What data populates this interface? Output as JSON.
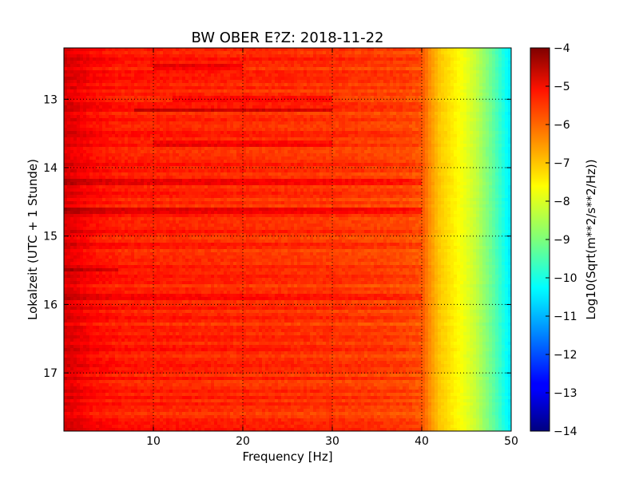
{
  "chart_data": {
    "type": "heatmap",
    "title": "BW OBER E?Z: 2018-11-22",
    "xlabel": "Frequency [Hz]",
    "ylabel": "Lokalzeit (UTC + 1 Stunde)",
    "xlim": [
      0,
      50
    ],
    "ylim": [
      12.25,
      17.85
    ],
    "x_ticks": [
      10,
      20,
      30,
      40,
      50
    ],
    "x_tick_labels": [
      "10",
      "20",
      "30",
      "40",
      "50"
    ],
    "y_ticks": [
      13,
      14,
      15,
      16,
      17
    ],
    "y_tick_labels": [
      "13",
      "14",
      "15",
      "16",
      "17"
    ],
    "grid": true,
    "y_inverted": true,
    "colormap": "jet",
    "colorbar": {
      "label": "Log10(Sqrt(m**2/s**2/Hz))",
      "range": [
        -14,
        -4
      ],
      "ticks": [
        -4,
        -5,
        -6,
        -7,
        -8,
        -9,
        -10,
        -11,
        -12,
        -13,
        -14
      ],
      "tick_labels": [
        "−4",
        "−5",
        "−6",
        "−7",
        "−8",
        "−9",
        "−10",
        "−11",
        "−12",
        "−13",
        "−14"
      ]
    },
    "spectrum_profile": {
      "frequency_hz": [
        0,
        1,
        3,
        6,
        10,
        20,
        30,
        38,
        40,
        41,
        42,
        44,
        46,
        48,
        50
      ],
      "log10_level": [
        -4.9,
        -5.0,
        -5.3,
        -5.5,
        -5.55,
        -5.65,
        -5.75,
        -5.9,
        -6.05,
        -6.7,
        -7.2,
        -7.7,
        -8.3,
        -9.3,
        -10.5
      ]
    },
    "dark_bands": [
      {
        "time": 13.17,
        "f_from": 8,
        "f_to": 30,
        "delta": 0.75
      },
      {
        "time": 12.52,
        "f_from": 10,
        "f_to": 20,
        "delta": 0.5
      },
      {
        "time": 13.0,
        "f_from": 12,
        "f_to": 30,
        "delta": 0.45
      },
      {
        "time": 13.65,
        "f_from": 10,
        "f_to": 30,
        "delta": 0.4
      },
      {
        "time": 14.2,
        "f_from": 0,
        "f_to": 40,
        "delta": 0.35
      },
      {
        "time": 14.62,
        "f_from": 0,
        "f_to": 40,
        "delta": 0.55
      },
      {
        "time": 15.12,
        "f_from": 0,
        "f_to": 40,
        "delta": 0.35
      },
      {
        "time": 15.5,
        "f_from": 0,
        "f_to": 6,
        "delta": 0.6
      },
      {
        "time": 15.9,
        "f_from": 0,
        "f_to": 40,
        "delta": 0.3
      }
    ]
  }
}
